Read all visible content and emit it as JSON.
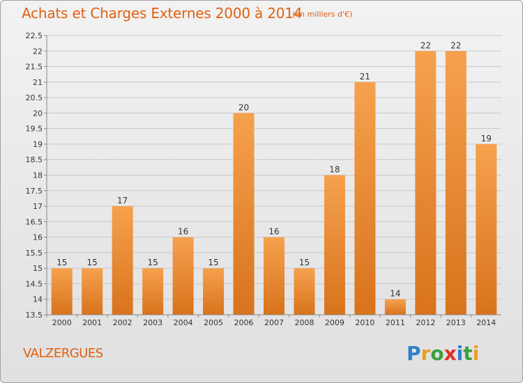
{
  "header": {
    "title": "Achats et Charges Externes 2000 à 2014",
    "unit": "(en milliers d'€)"
  },
  "footer": {
    "commune": "VALZERGUES",
    "brand": "Proxiti"
  },
  "colors": {
    "title": "#e06010",
    "bar_light": "#f6a14e",
    "bar_dark": "#d8731c",
    "grid": "#c8c8c8"
  },
  "chart_data": {
    "type": "bar",
    "title": "Achats et Charges Externes 2000 à 2014",
    "subtitle": "(en milliers d'€)",
    "categories": [
      "2000",
      "2001",
      "2002",
      "2003",
      "2004",
      "2005",
      "2006",
      "2007",
      "2008",
      "2009",
      "2010",
      "2011",
      "2012",
      "2013",
      "2014"
    ],
    "values": [
      15,
      15,
      17,
      15,
      16,
      15,
      20,
      16,
      15,
      18,
      21,
      14,
      22,
      22,
      19
    ],
    "data_labels": [
      "15",
      "15",
      "17",
      "15",
      "16",
      "15",
      "20",
      "16",
      "15",
      "18",
      "21",
      "14",
      "22",
      "22",
      "19"
    ],
    "ylim": [
      13.5,
      22.5
    ],
    "yticks": [
      13.5,
      14,
      14.5,
      15,
      15.5,
      16,
      16.5,
      17,
      17.5,
      18,
      18.5,
      19,
      19.5,
      20,
      20.5,
      21,
      21.5,
      22,
      22.5
    ],
    "ytick_labels": [
      "13.5",
      "14",
      "14.5",
      "15",
      "15.5",
      "16",
      "16.5",
      "17",
      "17.5",
      "18",
      "18.5",
      "19",
      "19.5",
      "20",
      "20.5",
      "21",
      "21.5",
      "22",
      "22.5"
    ],
    "grid": true,
    "legend": "none"
  }
}
